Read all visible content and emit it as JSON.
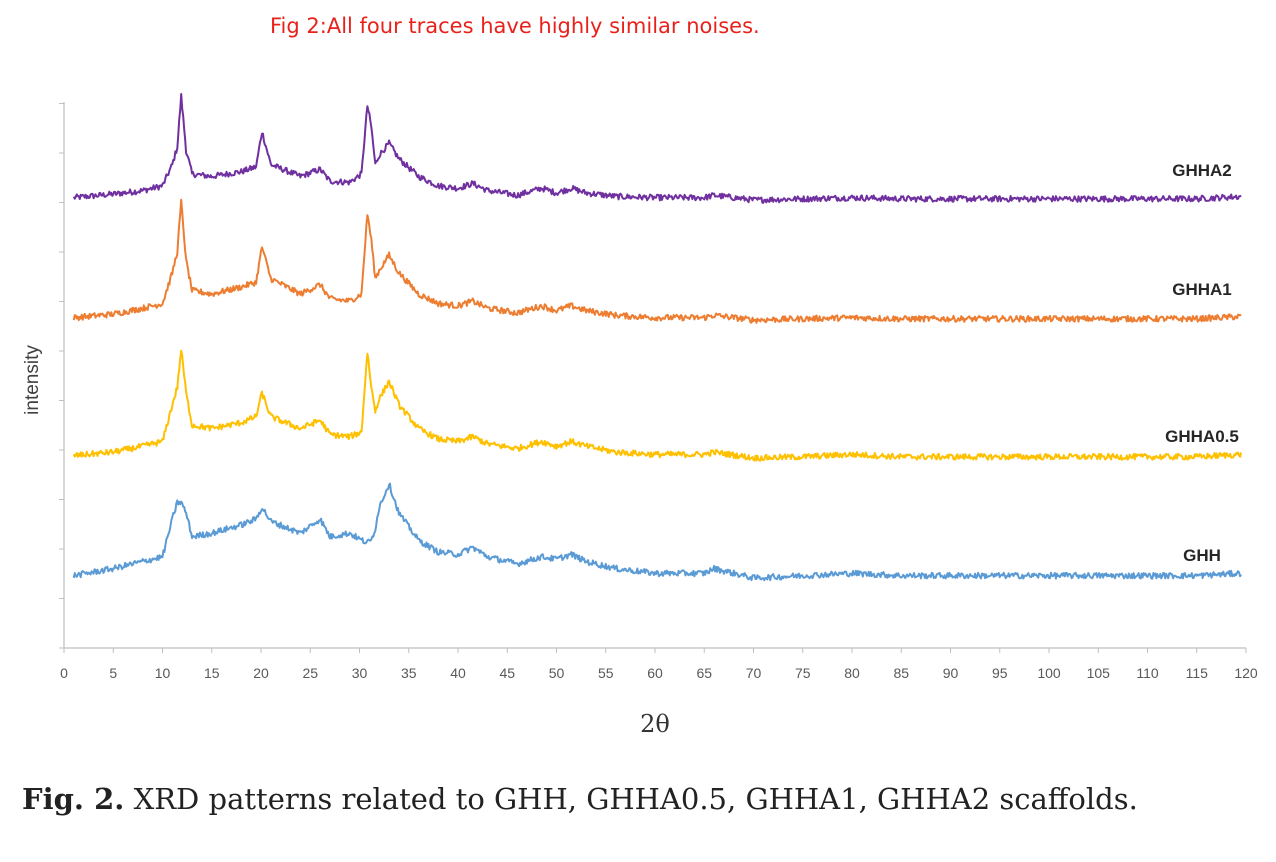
{
  "annotation": "Fig 2:All four traces have highly similar noises.",
  "caption": {
    "lead": "Fig. 2.",
    "text": "XRD patterns related to GHH, GHHA0.5, GHHA1, GHHA2 scaffolds."
  },
  "chart_data": {
    "type": "line",
    "title": "",
    "xlabel": "2θ",
    "ylabel": "intensity",
    "xlim": [
      0,
      120
    ],
    "xticks": [
      0,
      5,
      10,
      15,
      20,
      25,
      30,
      35,
      40,
      45,
      50,
      55,
      60,
      65,
      70,
      75,
      80,
      85,
      90,
      95,
      100,
      105,
      110,
      115,
      120
    ],
    "y_tick_labels_shown": false,
    "grid": false,
    "legend": "inline labels at right",
    "series": [
      {
        "name": "GHHA2",
        "color": "#7030a0",
        "offset": 3,
        "x": [
          1,
          5,
          8,
          10,
          11,
          11.5,
          11.9,
          12.4,
          13,
          15,
          18,
          19.5,
          20.1,
          21,
          24,
          26,
          27,
          29,
          30.2,
          30.8,
          31.2,
          31.6,
          32,
          33,
          34,
          36,
          38,
          40,
          41.5,
          43,
          46,
          48.5,
          50,
          51.5,
          53,
          56,
          60,
          65,
          66,
          70,
          75,
          80,
          85,
          90,
          95,
          100,
          105,
          110,
          115,
          119.5
        ],
        "y": [
          0.02,
          0.05,
          0.08,
          0.12,
          0.3,
          0.45,
          0.88,
          0.42,
          0.22,
          0.2,
          0.24,
          0.28,
          0.58,
          0.3,
          0.2,
          0.26,
          0.16,
          0.15,
          0.22,
          0.8,
          0.62,
          0.3,
          0.38,
          0.48,
          0.35,
          0.2,
          0.12,
          0.1,
          0.14,
          0.08,
          0.04,
          0.1,
          0.06,
          0.1,
          0.06,
          0.03,
          0.02,
          0.02,
          0.04,
          0.0,
          0.01,
          0.02,
          0.01,
          0.01,
          0.01,
          0.01,
          0.01,
          0.01,
          0.01,
          0.03
        ]
      },
      {
        "name": "GHHA1",
        "color": "#ed7d31",
        "offset": 2,
        "x": [
          1,
          5,
          8,
          10,
          11,
          11.5,
          11.9,
          12.4,
          13,
          15,
          18,
          19.5,
          20.1,
          21,
          24,
          26,
          27,
          29,
          30.2,
          30.8,
          31.2,
          31.6,
          32,
          33,
          34,
          36,
          38,
          40,
          41.5,
          43,
          46,
          48.5,
          50,
          51.5,
          53,
          56,
          60,
          65,
          66,
          70,
          75,
          80,
          85,
          90,
          95,
          100,
          105,
          110,
          115,
          119.5
        ],
        "y": [
          0.02,
          0.05,
          0.1,
          0.14,
          0.4,
          0.58,
          1.0,
          0.5,
          0.25,
          0.22,
          0.28,
          0.32,
          0.62,
          0.35,
          0.22,
          0.3,
          0.18,
          0.16,
          0.22,
          0.9,
          0.68,
          0.35,
          0.42,
          0.55,
          0.4,
          0.22,
          0.14,
          0.12,
          0.16,
          0.1,
          0.06,
          0.12,
          0.08,
          0.12,
          0.08,
          0.04,
          0.02,
          0.02,
          0.04,
          0.0,
          0.01,
          0.02,
          0.01,
          0.01,
          0.01,
          0.01,
          0.01,
          0.01,
          0.01,
          0.03
        ]
      },
      {
        "name": "GHHA0.5",
        "color": "#ffc000",
        "offset": 1,
        "x": [
          1,
          5,
          8,
          10,
          11,
          11.5,
          11.9,
          12.4,
          13,
          15,
          18,
          19.5,
          20.1,
          21,
          24,
          26,
          27,
          29,
          30.2,
          30.8,
          31.2,
          31.6,
          32,
          33,
          34,
          36,
          38,
          40,
          41.5,
          43,
          46,
          48.5,
          50,
          51.5,
          53,
          56,
          60,
          65,
          66,
          70,
          75,
          80,
          85,
          90,
          95,
          100,
          105,
          110,
          115,
          119.5
        ],
        "y": [
          0.02,
          0.05,
          0.1,
          0.14,
          0.45,
          0.6,
          0.92,
          0.55,
          0.28,
          0.25,
          0.3,
          0.35,
          0.55,
          0.35,
          0.25,
          0.32,
          0.2,
          0.18,
          0.22,
          0.9,
          0.6,
          0.4,
          0.5,
          0.65,
          0.45,
          0.25,
          0.16,
          0.14,
          0.18,
          0.12,
          0.08,
          0.14,
          0.1,
          0.14,
          0.1,
          0.05,
          0.03,
          0.03,
          0.05,
          0.0,
          0.01,
          0.03,
          0.01,
          0.01,
          0.01,
          0.01,
          0.01,
          0.01,
          0.01,
          0.03
        ]
      },
      {
        "name": "GHH",
        "color": "#5b9bd5",
        "offset": 0,
        "x": [
          1,
          5,
          8,
          10,
          11,
          11.5,
          11.9,
          12.4,
          13,
          15,
          18,
          19.5,
          20.1,
          21,
          24,
          26,
          27,
          29,
          30.2,
          30.8,
          31.2,
          31.6,
          32,
          33,
          34,
          36,
          38,
          40,
          41.5,
          43,
          46,
          48.5,
          50,
          51.5,
          53,
          56,
          60,
          65,
          66,
          70,
          75,
          80,
          85,
          90,
          95,
          100,
          105,
          110,
          115,
          119.5
        ],
        "y": [
          0.02,
          0.08,
          0.14,
          0.18,
          0.5,
          0.64,
          0.64,
          0.55,
          0.35,
          0.38,
          0.45,
          0.5,
          0.6,
          0.48,
          0.38,
          0.5,
          0.35,
          0.38,
          0.32,
          0.3,
          0.32,
          0.42,
          0.6,
          0.8,
          0.55,
          0.32,
          0.22,
          0.2,
          0.26,
          0.18,
          0.12,
          0.18,
          0.16,
          0.2,
          0.14,
          0.08,
          0.04,
          0.04,
          0.08,
          0.0,
          0.02,
          0.04,
          0.02,
          0.02,
          0.02,
          0.02,
          0.02,
          0.02,
          0.02,
          0.04
        ]
      }
    ]
  }
}
